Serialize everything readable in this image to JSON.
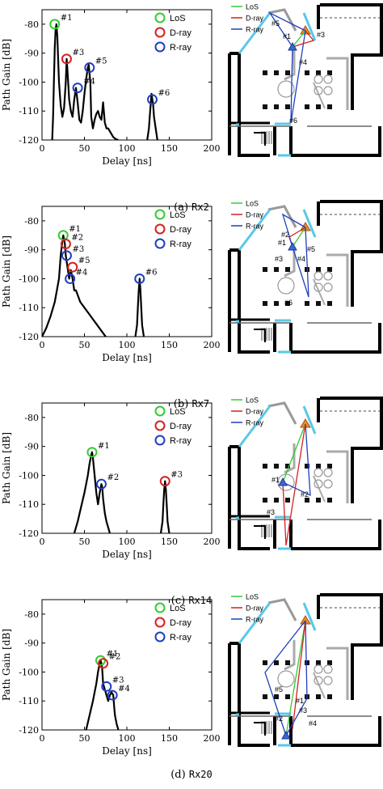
{
  "panels": [
    {
      "caption_letter": "(a)",
      "caption_name": "Rx2",
      "chart_data": {
        "type": "line",
        "xlabel": "Delay [ns]",
        "ylabel": "Path Gain [dB]",
        "xlim": [
          0,
          200
        ],
        "ylim": [
          -120,
          -75
        ],
        "xticks": [
          0,
          50,
          100,
          150,
          200
        ],
        "yticks": [
          -80,
          -90,
          -100,
          -110,
          -120
        ],
        "legend": [
          "LoS",
          "D-ray",
          "R-ray"
        ],
        "series": [
          {
            "x": [
              12,
              13,
              14,
              15,
              16,
              17,
              18,
              20,
              22,
              24,
              26,
              28,
              29,
              30,
              32,
              34,
              36,
              38,
              40,
              42,
              44,
              46,
              48,
              50,
              52,
              54,
              55,
              57,
              58,
              60,
              62,
              64,
              66,
              68,
              70,
              72,
              74,
              76,
              78,
              80,
              82,
              84,
              86,
              88,
              90
            ],
            "y": [
              -120,
              -112,
              -100,
              -88,
              -82,
              -80,
              -84,
              -100,
              -108,
              -112,
              -109,
              -100,
              -92,
              -96,
              -106,
              -110,
              -112,
              -106,
              -102,
              -107,
              -113,
              -114,
              -110,
              -104,
              -99,
              -95,
              -94,
              -100,
              -112,
              -116,
              -113,
              -111,
              -110,
              -112,
              -113,
              -107,
              -114,
              -116,
              -116,
              -117,
              -118,
              -119,
              -119.5,
              -119.8,
              -120
            ]
          },
          {
            "x": [
              124,
              126,
              127,
              128,
              129,
              130,
              131,
              132,
              134,
              136
            ],
            "y": [
              -120,
              -116,
              -112,
              -108,
              -104,
              -106,
              -108,
              -112,
              -116,
              -120
            ]
          }
        ],
        "markers": [
          {
            "label": "#1",
            "type": "LoS",
            "x": 15,
            "y": -80
          },
          {
            "label": "#3",
            "type": "D-ray",
            "x": 29,
            "y": -92
          },
          {
            "label": "#4",
            "type": "R-ray",
            "x": 42,
            "y": -102
          },
          {
            "label": "#5",
            "type": "R-ray",
            "x": 56,
            "y": -95
          },
          {
            "label": "#6",
            "type": "R-ray",
            "x": 130,
            "y": -106
          }
        ]
      },
      "map": {
        "labels": [
          "#5",
          "#1",
          "#3",
          "#4",
          "#6"
        ]
      }
    },
    {
      "caption_letter": "(b)",
      "caption_name": "Rx7",
      "chart_data": {
        "type": "line",
        "xlabel": "Delay [ns]",
        "ylabel": "Path Gain [dB]",
        "xlim": [
          0,
          200
        ],
        "ylim": [
          -120,
          -75
        ],
        "xticks": [
          0,
          50,
          100,
          150,
          200
        ],
        "yticks": [
          -80,
          -90,
          -100,
          -110,
          -120
        ],
        "legend": [
          "LoS",
          "D-ray",
          "R-ray"
        ],
        "series": [
          {
            "x": [
              0,
              5,
              10,
              15,
              20,
              22,
              24,
              25,
              27,
              28,
              30,
              32,
              34,
              36,
              38,
              40,
              45,
              50,
              55,
              60,
              65,
              70,
              75
            ],
            "y": [
              -120,
              -117,
              -113,
              -108,
              -100,
              -92,
              -87,
              -85,
              -88,
              -92,
              -96,
              -100,
              -97,
              -100,
              -104,
              -104,
              -108,
              -110,
              -112,
              -114,
              -116,
              -118,
              -120
            ]
          },
          {
            "x": [
              110,
              112,
              113,
              114,
              115,
              116,
              117,
              118,
              120
            ],
            "y": [
              -120,
              -116,
              -110,
              -104,
              -100,
              -104,
              -110,
              -116,
              -120
            ]
          }
        ],
        "markers": [
          {
            "label": "#1",
            "type": "LoS",
            "x": 25,
            "y": -85
          },
          {
            "label": "#2",
            "type": "D-ray",
            "x": 28,
            "y": -88
          },
          {
            "label": "#3",
            "type": "R-ray",
            "x": 29,
            "y": -92
          },
          {
            "label": "#4",
            "type": "R-ray",
            "x": 33,
            "y": -100
          },
          {
            "label": "#5",
            "type": "D-ray",
            "x": 36,
            "y": -96
          },
          {
            "label": "#6",
            "type": "R-ray",
            "x": 115,
            "y": -100
          }
        ]
      },
      "map": {
        "labels": [
          "#2",
          "#5",
          "#1",
          "#3",
          "#4",
          "#6"
        ]
      }
    },
    {
      "caption_letter": "(c)",
      "caption_name": "Rx14",
      "chart_data": {
        "type": "line",
        "xlabel": "Delay [ns]",
        "ylabel": "Path Gain [dB]",
        "xlim": [
          0,
          200
        ],
        "ylim": [
          -120,
          -75
        ],
        "xticks": [
          0,
          50,
          100,
          150,
          200
        ],
        "yticks": [
          -80,
          -90,
          -100,
          -110,
          -120
        ],
        "legend": [
          "LoS",
          "D-ray",
          "R-ray"
        ],
        "series": [
          {
            "x": [
              38,
              42,
              46,
              50,
              54,
              56,
              58,
              59,
              60,
              62,
              64,
              66,
              68,
              70,
              71,
              72,
              74,
              76,
              78,
              80
            ],
            "y": [
              -120,
              -116,
              -111,
              -106,
              -100,
              -96,
              -93,
              -92,
              -94,
              -100,
              -106,
              -110,
              -106,
              -103,
              -104,
              -108,
              -113,
              -116,
              -118,
              -120
            ]
          },
          {
            "x": [
              140,
              142,
              143,
              144,
              145,
              146,
              147,
              148,
              150
            ],
            "y": [
              -120,
              -116,
              -110,
              -105,
              -102,
              -105,
              -110,
              -116,
              -120
            ]
          }
        ],
        "markers": [
          {
            "label": "#1",
            "type": "LoS",
            "x": 59,
            "y": -92
          },
          {
            "label": "#2",
            "type": "R-ray",
            "x": 70,
            "y": -103
          },
          {
            "label": "#3",
            "type": "D-ray",
            "x": 145,
            "y": -102
          }
        ]
      },
      "map": {
        "labels": [
          "#1",
          "#2",
          "#3"
        ]
      }
    },
    {
      "caption_letter": "(d)",
      "caption_name": "Rx20",
      "chart_data": {
        "type": "line",
        "xlabel": "Delay [ns]",
        "ylabel": "Path Gain [dB]",
        "xlim": [
          0,
          200
        ],
        "ylim": [
          -120,
          -75
        ],
        "xticks": [
          0,
          50,
          100,
          150,
          200
        ],
        "yticks": [
          -80,
          -90,
          -100,
          -110,
          -120
        ],
        "legend": [
          "LoS",
          "D-ray",
          "R-ray"
        ],
        "series": [
          {
            "x": [
              52,
              56,
              60,
              64,
              66,
              68,
              69,
              70,
              71,
              72,
              74,
              76,
              78,
              80,
              82,
              84,
              85,
              86,
              88,
              90
            ],
            "y": [
              -120,
              -115,
              -110,
              -104,
              -100,
              -97,
              -96,
              -97,
              -99,
              -104,
              -106,
              -108,
              -110,
              -108,
              -107,
              -108,
              -112,
              -115,
              -118,
              -120
            ]
          }
        ],
        "markers": [
          {
            "label": "#1",
            "type": "LoS",
            "x": 69,
            "y": -96
          },
          {
            "label": "#2",
            "type": "D-ray",
            "x": 72,
            "y": -97
          },
          {
            "label": "#3",
            "type": "R-ray",
            "x": 76,
            "y": -105
          },
          {
            "label": "#4",
            "type": "R-ray",
            "x": 83,
            "y": -108
          }
        ]
      },
      "map": {
        "labels": [
          "#5",
          "#1",
          "#2",
          "#3",
          "#4"
        ]
      }
    }
  ],
  "colors": {
    "los": "#33cc33",
    "dray": "#d62020",
    "rray": "#1f3fbf",
    "wall": "#000000",
    "glass": "#58c8e8",
    "tx": "#f08a24"
  }
}
